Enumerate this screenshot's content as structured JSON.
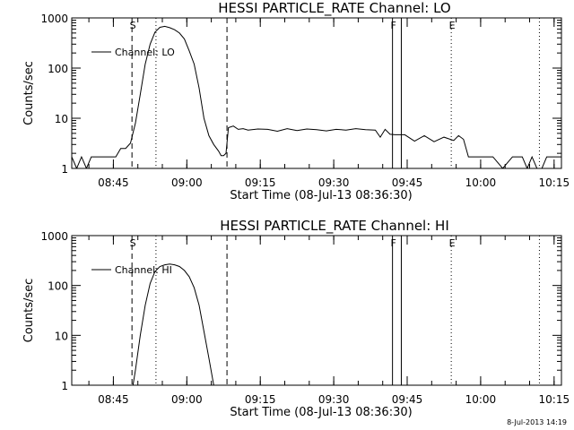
{
  "timestamp": "8-Jul-2013 14:19",
  "chart_data": [
    {
      "type": "line",
      "title": "HESSI PARTICLE_RATE Channel: LO",
      "xlabel": "Start Time (08-Jul-13 08:36:30)",
      "ylabel": "Counts/sec",
      "xscale": "time (minutes since 08:36:30)",
      "xlim": [
        0,
        100
      ],
      "yscale": "log",
      "ylim": [
        1,
        1000
      ],
      "x_ticks": [
        {
          "x": 8.5,
          "label": "08:45"
        },
        {
          "x": 23.5,
          "label": "09:00"
        },
        {
          "x": 38.5,
          "label": "09:15"
        },
        {
          "x": 53.5,
          "label": "09:30"
        },
        {
          "x": 68.5,
          "label": "09:45"
        },
        {
          "x": 83.5,
          "label": "10:00"
        },
        {
          "x": 98.5,
          "label": "10:15"
        }
      ],
      "y_ticks": [
        {
          "y": 1,
          "label": "1"
        },
        {
          "y": 10,
          "label": "10"
        },
        {
          "y": 100,
          "label": "100"
        },
        {
          "y": 1000,
          "label": "1000"
        }
      ],
      "legend": {
        "entries": [
          "Channel: LO"
        ],
        "position": "top-left"
      },
      "markers": [
        {
          "x": 12.3,
          "label": "S",
          "style": "dashed"
        },
        {
          "x": 17.2,
          "label": "",
          "style": "dotted"
        },
        {
          "x": 31.7,
          "label": "",
          "style": "dashed"
        },
        {
          "x": 65.5,
          "label": "F",
          "style": "solid"
        },
        {
          "x": 67.3,
          "label": "",
          "style": "solid"
        },
        {
          "x": 77.5,
          "label": "E",
          "style": "dotted"
        },
        {
          "x": 95.5,
          "label": "",
          "style": "dotted"
        }
      ],
      "series": [
        {
          "name": "Channel: LO",
          "x": [
            0,
            1,
            2,
            3,
            4,
            5,
            6,
            7,
            8,
            9,
            10,
            11,
            12,
            13,
            14,
            15,
            16,
            17,
            18,
            19,
            20,
            21,
            22,
            23,
            24,
            25,
            26,
            27,
            28,
            29,
            30,
            30.5,
            31,
            31.5,
            32,
            33,
            34,
            35,
            36,
            38,
            40,
            42,
            44,
            46,
            48,
            50,
            52,
            54,
            56,
            58,
            60,
            62,
            63,
            64,
            65,
            66,
            68,
            70,
            72,
            74,
            76,
            78,
            79,
            80,
            81,
            82,
            84,
            86,
            88,
            90,
            92,
            93,
            94,
            95,
            96,
            97,
            98,
            99,
            100
          ],
          "y": [
            1.7,
            1,
            1.7,
            1,
            1.7,
            1.7,
            1.7,
            1.7,
            1.7,
            1.7,
            2.5,
            2.5,
            3.2,
            8,
            30,
            120,
            300,
            520,
            650,
            680,
            640,
            580,
            500,
            380,
            220,
            120,
            40,
            10,
            4.5,
            3,
            2.2,
            1.8,
            1.8,
            2,
            6.5,
            7,
            6,
            6.2,
            5.8,
            6.1,
            6,
            5.5,
            6.2,
            5.7,
            6.1,
            5.9,
            5.6,
            6,
            5.8,
            6.2,
            5.9,
            5.8,
            4.2,
            6,
            4.8,
            4.7,
            4.7,
            3.5,
            4.5,
            3.4,
            4.2,
            3.6,
            4.5,
            3.8,
            1.7,
            1.7,
            1.7,
            1.7,
            1,
            1.7,
            1.7,
            1,
            1.7,
            1,
            1,
            1.7,
            1.7,
            1.7,
            1.7
          ]
        }
      ]
    },
    {
      "type": "line",
      "title": "HESSI PARTICLE_RATE Channel: HI",
      "xlabel": "Start Time (08-Jul-13 08:36:30)",
      "ylabel": "Counts/sec",
      "xscale": "time (minutes since 08:36:30)",
      "xlim": [
        0,
        100
      ],
      "yscale": "log",
      "ylim": [
        1,
        1000
      ],
      "x_ticks": [
        {
          "x": 8.5,
          "label": "08:45"
        },
        {
          "x": 23.5,
          "label": "09:00"
        },
        {
          "x": 38.5,
          "label": "09:15"
        },
        {
          "x": 53.5,
          "label": "09:30"
        },
        {
          "x": 68.5,
          "label": "09:45"
        },
        {
          "x": 83.5,
          "label": "10:00"
        },
        {
          "x": 98.5,
          "label": "10:15"
        }
      ],
      "y_ticks": [
        {
          "y": 1,
          "label": "1"
        },
        {
          "y": 10,
          "label": "10"
        },
        {
          "y": 100,
          "label": "100"
        },
        {
          "y": 1000,
          "label": "1000"
        }
      ],
      "legend": {
        "entries": [
          "Channel: HI"
        ],
        "position": "top-left"
      },
      "markers": [
        {
          "x": 12.3,
          "label": "S",
          "style": "dashed"
        },
        {
          "x": 17.2,
          "label": "",
          "style": "dotted"
        },
        {
          "x": 31.7,
          "label": "",
          "style": "dashed"
        },
        {
          "x": 65.5,
          "label": "F",
          "style": "solid"
        },
        {
          "x": 67.3,
          "label": "",
          "style": "solid"
        },
        {
          "x": 77.5,
          "label": "E",
          "style": "dotted"
        },
        {
          "x": 95.5,
          "label": "",
          "style": "dotted"
        }
      ],
      "series": [
        {
          "name": "Channel: HI",
          "x": [
            12.5,
            13,
            14,
            15,
            16,
            17,
            18,
            19,
            20,
            21,
            22,
            23,
            24,
            25,
            26,
            27,
            28,
            29
          ],
          "y": [
            1,
            2,
            10,
            40,
            110,
            190,
            240,
            260,
            270,
            260,
            240,
            200,
            150,
            90,
            40,
            12,
            3.5,
            1
          ]
        }
      ]
    }
  ]
}
